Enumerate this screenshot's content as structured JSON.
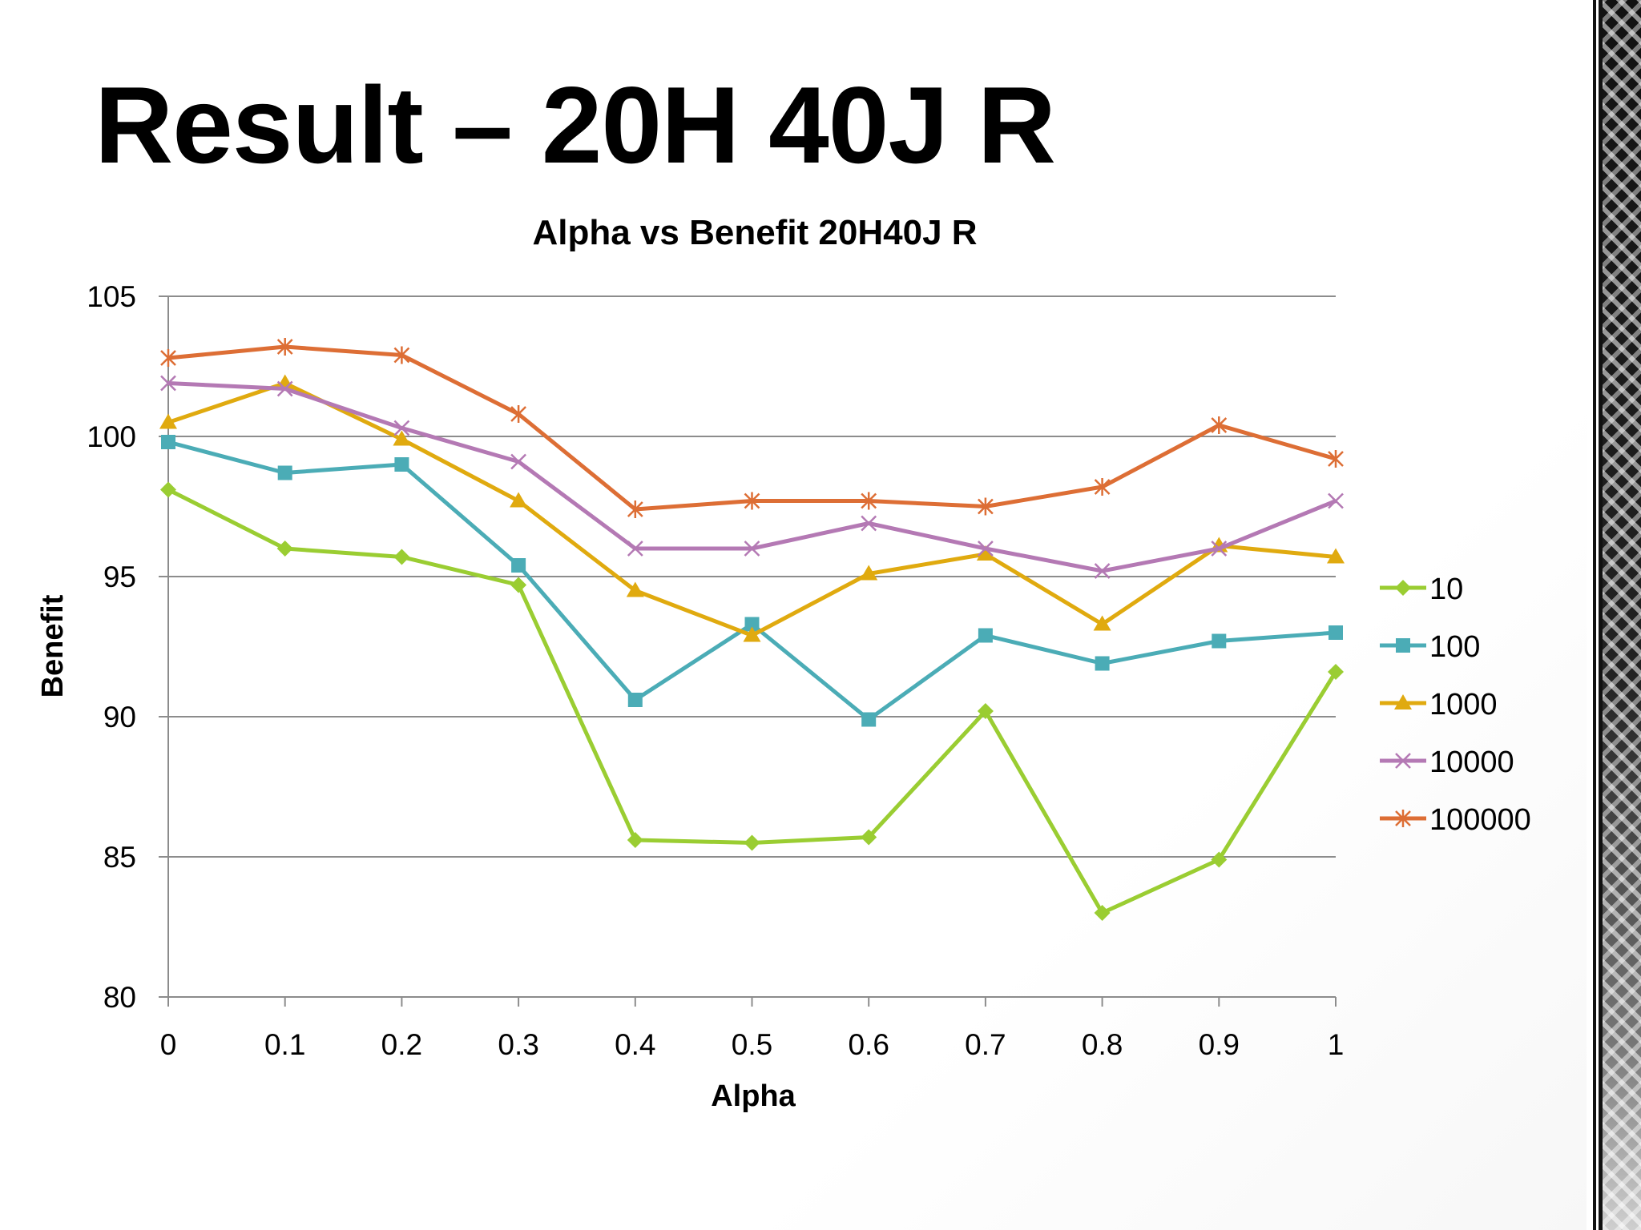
{
  "slide": {
    "title": "Result – 20H 40J R"
  },
  "chart_data": {
    "type": "line",
    "title": "Alpha vs Benefit 20H40J R",
    "xlabel": "Alpha",
    "ylabel": "Benefit",
    "x": [
      "0",
      "0.1",
      "0.2",
      "0.3",
      "0.4",
      "0.5",
      "0.6",
      "0.7",
      "0.8",
      "0.9",
      "1"
    ],
    "ylim": [
      80,
      105
    ],
    "yticks": [
      "80",
      "85",
      "90",
      "95",
      "100",
      "105"
    ],
    "grid": "horizontal",
    "legend_position": "right",
    "series": [
      {
        "name": "10",
        "color": "#9ACD32",
        "marker": "diamond",
        "values": [
          98.1,
          96.0,
          95.7,
          94.7,
          85.6,
          85.5,
          85.7,
          90.2,
          83.0,
          84.9,
          91.6
        ]
      },
      {
        "name": "100",
        "color": "#4BACB6",
        "marker": "square",
        "values": [
          99.8,
          98.7,
          99.0,
          95.4,
          90.6,
          93.3,
          89.9,
          92.9,
          91.9,
          92.7,
          93.0
        ]
      },
      {
        "name": "1000",
        "color": "#E0AA0F",
        "marker": "triangle",
        "values": [
          100.5,
          101.9,
          99.9,
          97.7,
          94.5,
          92.9,
          95.1,
          95.8,
          93.3,
          96.1,
          95.7
        ]
      },
      {
        "name": "10000",
        "color": "#B479B4",
        "marker": "x",
        "values": [
          101.9,
          101.7,
          100.3,
          99.1,
          96.0,
          96.0,
          96.9,
          96.0,
          95.2,
          96.0,
          97.7
        ]
      },
      {
        "name": "100000",
        "color": "#DD6E35",
        "marker": "star",
        "values": [
          102.8,
          103.2,
          102.9,
          100.8,
          97.4,
          97.7,
          97.7,
          97.5,
          98.2,
          100.4,
          99.2
        ]
      }
    ]
  }
}
